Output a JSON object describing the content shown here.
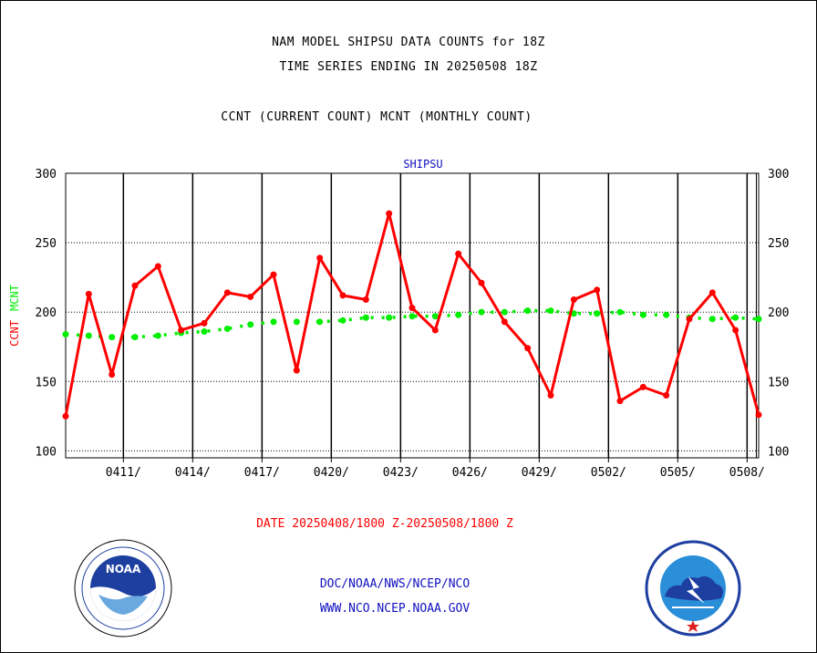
{
  "header": {
    "line1": "NAM MODEL SHIPSU DATA COUNTS for 18Z",
    "line2": "TIME SERIES ENDING IN 20250508 18Z",
    "line3": "CCNT (CURRENT COUNT) MCNT (MONTHLY COUNT)"
  },
  "footer": {
    "credit1": "DOC/NOAA/NWS/NCEP/NCO",
    "credit2": "WWW.NCO.NCEP.NOAA.GOV"
  },
  "logos": {
    "left": "noaa-logo",
    "left_text": "NOAA",
    "right": "national-weather-service-logo"
  },
  "colors": {
    "ccnt": "#ff0000",
    "mcnt": "#00ee00",
    "title_blue": "#1010c0",
    "date_red": "#ff0000"
  },
  "chart_data": {
    "type": "line",
    "title": "SHIPSU",
    "xlabel": "DATE 20250408/1800 Z-20250508/1800 Z",
    "ylabel_left": [
      "CCNT",
      "MCNT"
    ],
    "ylim": [
      95,
      300
    ],
    "yticks": [
      100,
      150,
      200,
      250,
      300
    ],
    "x_tick_labels": [
      "0411/",
      "0414/",
      "0417/",
      "0420/",
      "0423/",
      "0426/",
      "0429/",
      "0502/",
      "0505/",
      "0508/"
    ],
    "x_tick_days": [
      2.5,
      5.5,
      8.5,
      11.5,
      14.5,
      17.5,
      20.5,
      23.5,
      26.5,
      29.5
    ],
    "x": [
      0,
      1,
      2,
      3,
      4,
      5,
      6,
      7,
      8,
      9,
      10,
      11,
      12,
      13,
      14,
      15,
      16,
      17,
      18,
      19,
      20,
      21,
      22,
      23,
      24,
      25,
      26,
      27,
      28,
      29,
      30
    ],
    "grid": true,
    "series": [
      {
        "name": "CCNT",
        "color": "#ff0000",
        "values": [
          125,
          213,
          155,
          219,
          233,
          187,
          192,
          214,
          211,
          227,
          158,
          239,
          212,
          209,
          271,
          203,
          187,
          242,
          221,
          193,
          174,
          140,
          209,
          216,
          136,
          146,
          140,
          195,
          214,
          187,
          126
        ]
      },
      {
        "name": "MCNT",
        "color": "#00ee00",
        "values": [
          184,
          183,
          182,
          182,
          183,
          185,
          186,
          188,
          191,
          193,
          193,
          193,
          194,
          196,
          196,
          197,
          197,
          198,
          200,
          200,
          201,
          201,
          199,
          199,
          200,
          198,
          198,
          196,
          195,
          196,
          195
        ]
      }
    ]
  }
}
